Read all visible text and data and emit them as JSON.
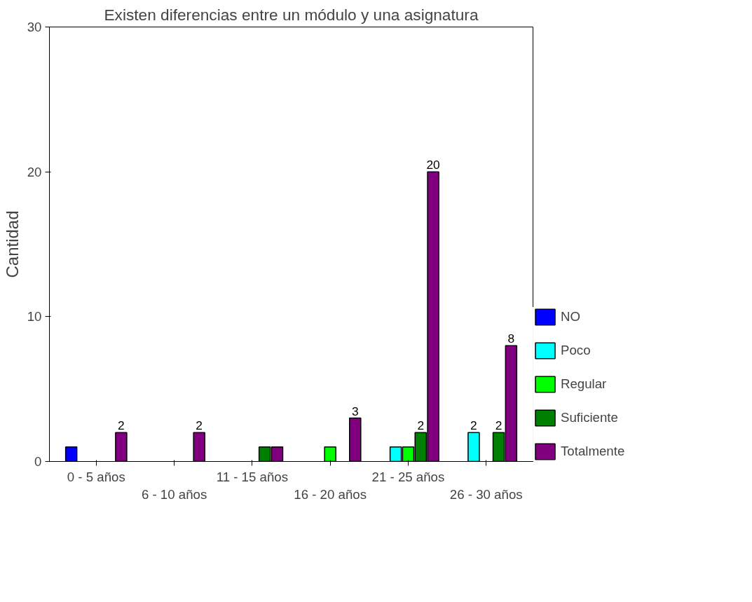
{
  "chart_data": {
    "type": "bar",
    "title": "Existen diferencias entre un módulo y una asignatura",
    "ylabel": "Cantidad",
    "categories": [
      "0 - 5 años",
      "6 - 10 años",
      "11 - 15 años",
      "16 - 20 años",
      "21 - 25 años",
      "26 - 30 años"
    ],
    "ylim": [
      0,
      30
    ],
    "yticks": [
      0,
      10,
      20,
      30
    ],
    "grid": false,
    "legend": "right",
    "series": [
      {
        "name": "NO",
        "color": "#0000ff",
        "values": [
          1,
          null,
          null,
          null,
          null,
          null
        ],
        "value_labels": [
          null,
          null,
          null,
          null,
          null,
          null
        ]
      },
      {
        "name": "Poco",
        "color": "#00ffff",
        "values": [
          null,
          null,
          null,
          null,
          1,
          2
        ],
        "value_labels": [
          null,
          null,
          null,
          null,
          null,
          "2"
        ]
      },
      {
        "name": "Regular",
        "color": "#00ff00",
        "values": [
          null,
          null,
          null,
          1,
          1,
          null
        ],
        "value_labels": [
          null,
          null,
          null,
          null,
          null,
          null
        ]
      },
      {
        "name": "Suficiente",
        "color": "#008000",
        "values": [
          null,
          null,
          1,
          null,
          2,
          2
        ],
        "value_labels": [
          null,
          null,
          null,
          null,
          "2",
          "2"
        ]
      },
      {
        "name": "Totalmente",
        "color": "#800080",
        "values": [
          2,
          2,
          1,
          3,
          20,
          8
        ],
        "value_labels": [
          "2",
          "2",
          null,
          "3",
          "20",
          "8"
        ]
      }
    ]
  }
}
